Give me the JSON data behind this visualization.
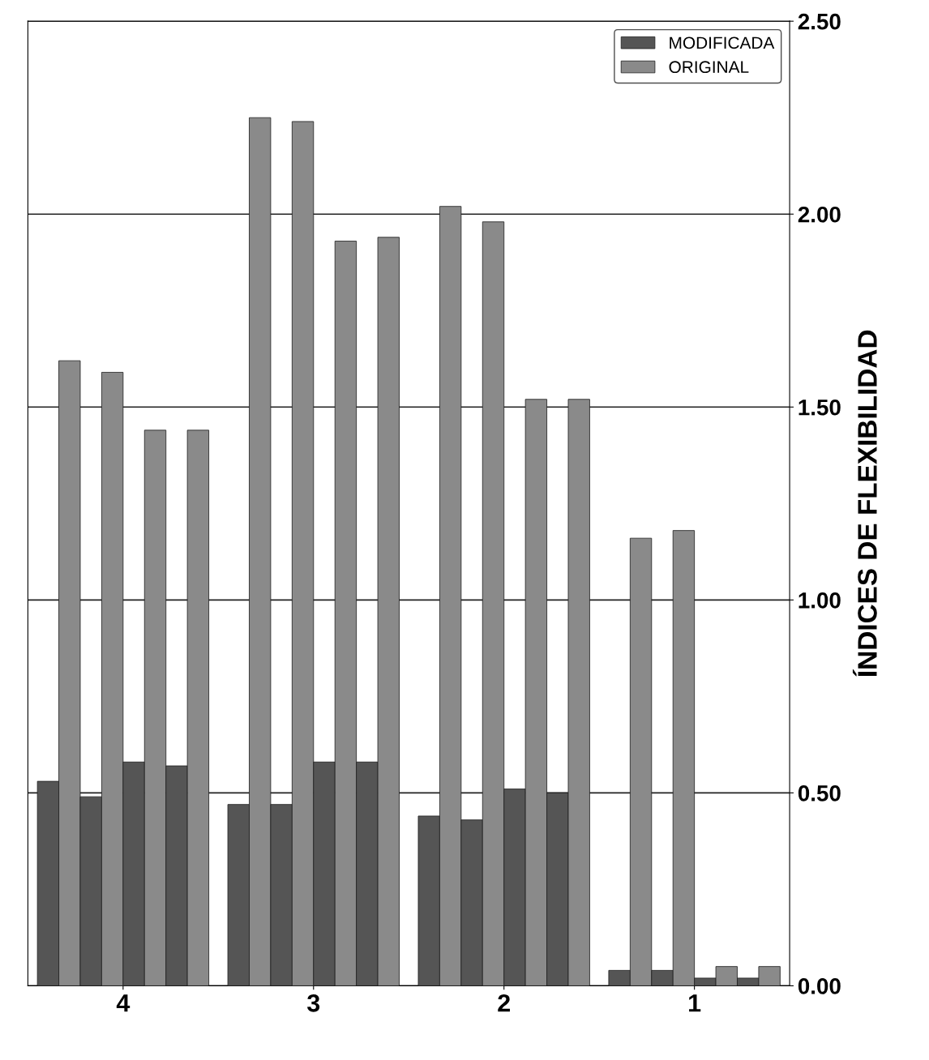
{
  "chart_data": {
    "type": "bar",
    "categories": [
      "4",
      "3",
      "2",
      "1"
    ],
    "ylabel": "ÍNDICES DE FLEXIBILIDAD",
    "ylim": [
      0,
      2.5
    ],
    "yticks": [
      {
        "value": 0,
        "label": "0.00"
      },
      {
        "value": 0.5,
        "label": "0.50"
      },
      {
        "value": 1,
        "label": "1.00"
      },
      {
        "value": 1.5,
        "label": "1.50"
      },
      {
        "value": 2,
        "label": "2.00"
      },
      {
        "value": 2.5,
        "label": "2.50"
      }
    ],
    "grid": "y",
    "legend": "top right",
    "series": [
      {
        "name": "MODIFICADA",
        "color": "#555555",
        "values": [
          0.53,
          0.47,
          0.44,
          0.04
        ]
      },
      {
        "name": "ORIGINAL",
        "color": "#8a8a8a",
        "values": [
          1.62,
          2.25,
          2.02,
          1.16
        ]
      },
      {
        "color": "#555555",
        "values": [
          0.49,
          0.47,
          0.43,
          0.04
        ]
      },
      {
        "color": "#8a8a8a",
        "values": [
          1.59,
          2.24,
          1.98,
          1.18
        ]
      },
      {
        "color": "#555555",
        "values": [
          0.58,
          0.58,
          0.51,
          0.02
        ]
      },
      {
        "color": "#8a8a8a",
        "values": [
          1.44,
          1.93,
          1.52,
          0.05
        ]
      },
      {
        "color": "#555555",
        "values": [
          0.57,
          0.58,
          0.5,
          0.02
        ]
      },
      {
        "color": "#8a8a8a",
        "values": [
          1.44,
          1.94,
          1.52,
          0.05
        ]
      }
    ]
  }
}
